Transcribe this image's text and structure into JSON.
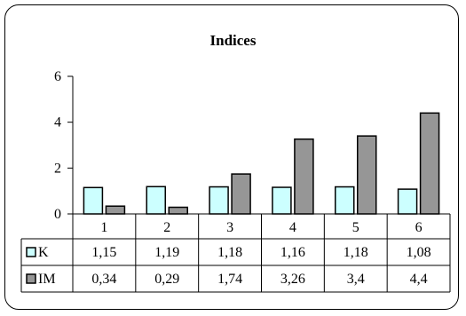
{
  "chart_data": {
    "type": "bar",
    "title": "Indices",
    "categories": [
      "1",
      "2",
      "3",
      "4",
      "5",
      "6"
    ],
    "series": [
      {
        "name": "K",
        "values": [
          1.15,
          1.19,
          1.18,
          1.16,
          1.18,
          1.08
        ],
        "labels": [
          "1,15",
          "1,19",
          "1,18",
          "1,16",
          "1,18",
          "1,08"
        ],
        "color": "#ccffff"
      },
      {
        "name": "IM",
        "values": [
          0.34,
          0.29,
          1.74,
          3.26,
          3.4,
          4.4
        ],
        "labels": [
          "0,34",
          "0,29",
          "1,74",
          "3,26",
          "3,4",
          "4,4"
        ],
        "color": "#969696"
      }
    ],
    "ylim": [
      0,
      6
    ],
    "yticks": [
      "0",
      "2",
      "4",
      "6"
    ],
    "grid": false,
    "legend": "data-table",
    "xlabel": "",
    "ylabel": ""
  }
}
